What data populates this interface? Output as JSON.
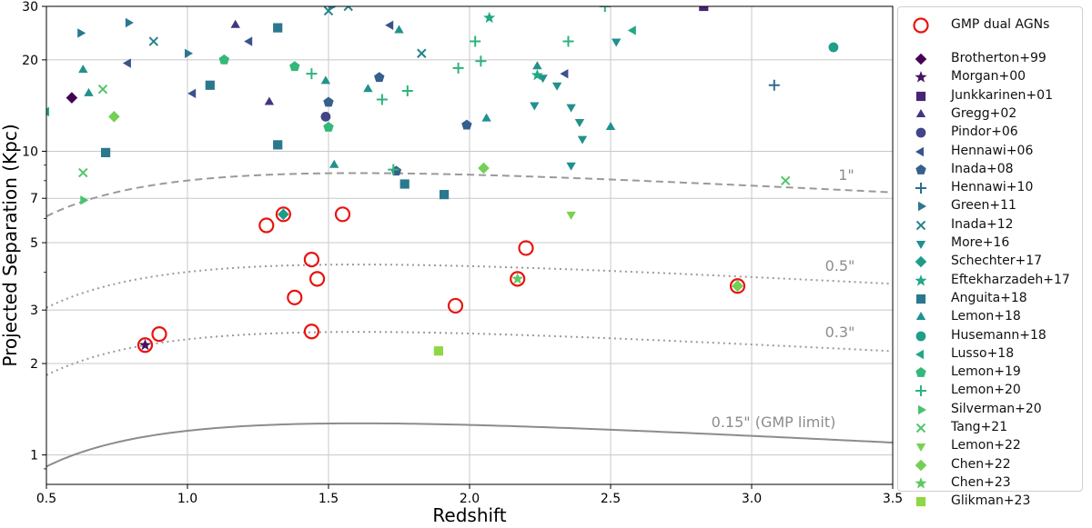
{
  "chart_data": {
    "type": "scatter",
    "xlabel": "Redshift",
    "ylabel": "Projected Separation (Kpc)",
    "xlim": [
      0.5,
      3.5
    ],
    "ylim": [
      0.8,
      30
    ],
    "yscale": "log",
    "grid": true,
    "legend_position": "outside-right",
    "x_ticks": [
      0.5,
      1.0,
      1.5,
      2.0,
      2.5,
      3.0,
      3.5
    ],
    "x_tick_labels": [
      "0.5",
      "1.0",
      "1.5",
      "2.0",
      "2.5",
      "3.0",
      "3.5"
    ],
    "y_ticks": [
      1,
      2,
      3,
      5,
      7,
      10,
      20,
      30
    ],
    "y_tick_labels": [
      "1",
      "2",
      "3",
      "5",
      "7",
      "10",
      "20",
      "30"
    ],
    "curves": [
      {
        "label": "1\"",
        "arcsec": 1.0,
        "style": "dashed",
        "color": "#9a9a9a"
      },
      {
        "label": "0.5\"",
        "arcsec": 0.5,
        "style": "dotted",
        "color": "#9a9a9a"
      },
      {
        "label": "0.3\"",
        "arcsec": 0.3,
        "style": "dotted",
        "color": "#9a9a9a"
      },
      {
        "label": "0.15\" (GMP limit)",
        "arcsec": 0.15,
        "style": "solid",
        "color": "#8c8c8c"
      }
    ],
    "gmp_series": {
      "name": "GMP dual AGNs",
      "color": "#e8140f",
      "points": [
        [
          0.85,
          2.3
        ],
        [
          0.9,
          2.5
        ],
        [
          1.28,
          5.7
        ],
        [
          1.34,
          6.2
        ],
        [
          1.38,
          3.3
        ],
        [
          1.44,
          2.55
        ],
        [
          1.44,
          4.4
        ],
        [
          1.46,
          3.8
        ],
        [
          1.55,
          6.2
        ],
        [
          1.95,
          3.1
        ],
        [
          2.17,
          3.8
        ],
        [
          2.2,
          4.8
        ],
        [
          2.95,
          3.6
        ]
      ]
    },
    "series": [
      {
        "name": "Brotherton+99",
        "marker": "D",
        "color": "#440154",
        "points": [
          [
            0.59,
            15
          ]
        ]
      },
      {
        "name": "Morgan+00",
        "marker": "*",
        "color": "#471365",
        "points": [
          [
            0.85,
            2.3
          ]
        ]
      },
      {
        "name": "Junkkarinen+01",
        "marker": "s",
        "color": "#482475",
        "points": [
          [
            2.83,
            30
          ]
        ]
      },
      {
        "name": "Gregg+02",
        "marker": "^",
        "color": "#463480",
        "points": [
          [
            1.17,
            26
          ],
          [
            1.29,
            14.5
          ]
        ]
      },
      {
        "name": "Pindor+06",
        "marker": "o",
        "color": "#414487",
        "points": [
          [
            1.49,
            13
          ]
        ]
      },
      {
        "name": "Hennawi+06",
        "marker": "<",
        "color": "#3b528b",
        "points": [
          [
            1.02,
            15.5
          ],
          [
            0.79,
            19.5
          ],
          [
            1.22,
            23
          ],
          [
            1.72,
            26
          ],
          [
            2.34,
            18
          ]
        ]
      },
      {
        "name": "Inada+08",
        "marker": "p",
        "color": "#355f8d",
        "points": [
          [
            1.5,
            14.5
          ],
          [
            1.68,
            17.5
          ],
          [
            1.99,
            12.2
          ],
          [
            1.74,
            8.6
          ]
        ]
      },
      {
        "name": "Hennawi+10",
        "marker": "+",
        "color": "#2f6c8e",
        "points": [
          [
            3.08,
            16.5
          ]
        ]
      },
      {
        "name": "Green+11",
        "marker": ">",
        "color": "#2a788e",
        "points": [
          [
            0.62,
            24.5
          ],
          [
            0.79,
            26.5
          ],
          [
            1.0,
            21
          ],
          [
            1.51,
            30
          ]
        ]
      },
      {
        "name": "Inada+12",
        "marker": "x",
        "color": "#25848e",
        "points": [
          [
            0.88,
            23
          ],
          [
            1.5,
            29
          ],
          [
            1.57,
            30
          ],
          [
            1.83,
            21
          ]
        ]
      },
      {
        "name": "More+16",
        "marker": "v",
        "color": "#21918c",
        "points": [
          [
            2.26,
            17.5
          ],
          [
            2.31,
            16.5
          ],
          [
            2.39,
            12.5
          ],
          [
            2.4,
            11
          ],
          [
            2.36,
            9
          ],
          [
            2.52,
            23
          ],
          [
            2.23,
            14.2
          ],
          [
            2.36,
            14
          ]
        ]
      },
      {
        "name": "Schechter+17",
        "marker": "D",
        "color": "#1e9c89",
        "points": [
          [
            1.34,
            6.2
          ],
          [
            2.95,
            3.6
          ]
        ]
      },
      {
        "name": "Eftekharzadeh+17",
        "marker": "*",
        "color": "#22a884",
        "points": [
          [
            2.07,
            27.5
          ],
          [
            2.24,
            17.8
          ]
        ]
      },
      {
        "name": "Anguita+18",
        "marker": "s",
        "color": "#2a788e",
        "points": [
          [
            0.71,
            9.9
          ],
          [
            1.08,
            16.5
          ],
          [
            1.32,
            25.5
          ],
          [
            1.32,
            10.5
          ],
          [
            1.77,
            7.8
          ],
          [
            1.91,
            7.2
          ]
        ]
      },
      {
        "name": "Lemon+18",
        "marker": "^",
        "color": "#21918c",
        "points": [
          [
            0.63,
            18.5
          ],
          [
            0.65,
            15.5
          ],
          [
            1.49,
            17
          ],
          [
            1.52,
            9
          ],
          [
            1.64,
            16
          ],
          [
            1.75,
            25
          ],
          [
            2.06,
            12.8
          ],
          [
            2.5,
            12
          ],
          [
            2.24,
            19
          ]
        ]
      },
      {
        "name": "Husemann+18",
        "marker": "o",
        "color": "#1f9e89",
        "points": [
          [
            3.29,
            22
          ]
        ]
      },
      {
        "name": "Lusso+18",
        "marker": "<",
        "color": "#22a884",
        "points": [
          [
            2.58,
            25
          ],
          [
            0.5,
            13.5
          ]
        ]
      },
      {
        "name": "Lemon+19",
        "marker": "p",
        "color": "#35b779",
        "points": [
          [
            1.13,
            20
          ],
          [
            1.38,
            19
          ],
          [
            1.5,
            12
          ]
        ]
      },
      {
        "name": "Lemon+20",
        "marker": "+",
        "color": "#2eb37c",
        "points": [
          [
            1.44,
            18
          ],
          [
            1.69,
            14.8
          ],
          [
            1.78,
            15.8
          ],
          [
            1.96,
            18.8
          ],
          [
            2.02,
            23
          ],
          [
            2.04,
            19.8
          ],
          [
            2.35,
            23
          ],
          [
            1.73,
            8.7
          ],
          [
            2.48,
            30
          ]
        ]
      },
      {
        "name": "Silverman+20",
        "marker": ">",
        "color": "#4ac16d",
        "points": [
          [
            0.63,
            6.9
          ]
        ]
      },
      {
        "name": "Tang+21",
        "marker": "x",
        "color": "#52c569",
        "points": [
          [
            0.7,
            16
          ],
          [
            0.63,
            8.5
          ],
          [
            3.12,
            8
          ]
        ]
      },
      {
        "name": "Lemon+22",
        "marker": "v",
        "color": "#7ad151",
        "points": [
          [
            2.36,
            6.2
          ]
        ]
      },
      {
        "name": "Chen+22",
        "marker": "D",
        "color": "#73d055",
        "points": [
          [
            0.74,
            13
          ],
          [
            2.05,
            8.8
          ],
          [
            2.95,
            3.6
          ]
        ]
      },
      {
        "name": "Chen+23",
        "marker": "*",
        "color": "#5ec962",
        "points": [
          [
            2.17,
            3.8
          ]
        ]
      },
      {
        "name": "Glikman+23",
        "marker": "s",
        "color": "#8fd744",
        "points": [
          [
            1.89,
            2.2
          ]
        ]
      }
    ]
  }
}
